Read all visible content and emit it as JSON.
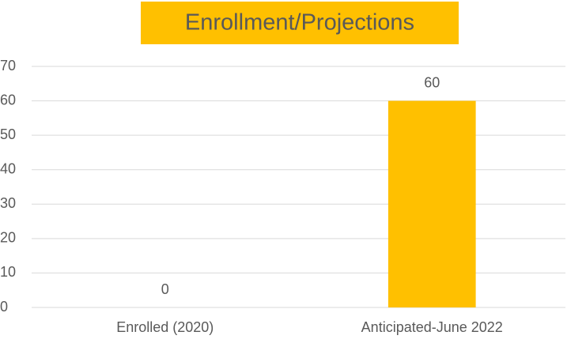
{
  "chart_data": {
    "type": "bar",
    "title": "Enrollment/Projections",
    "categories": [
      "Enrolled (2020)",
      "Anticipated-June 2022"
    ],
    "values": [
      0,
      60
    ],
    "color": "#ffc000",
    "ylim": [
      0,
      70
    ],
    "yticks": [
      0,
      10,
      20,
      30,
      40,
      50,
      60,
      70
    ],
    "grid": true
  }
}
